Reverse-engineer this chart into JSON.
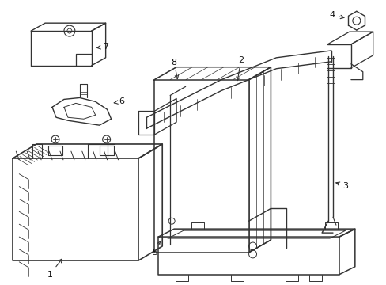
{
  "bg_color": "#ffffff",
  "line_color": "#333333",
  "label_color": "#111111",
  "figsize": [
    4.89,
    3.6
  ],
  "dpi": 100
}
